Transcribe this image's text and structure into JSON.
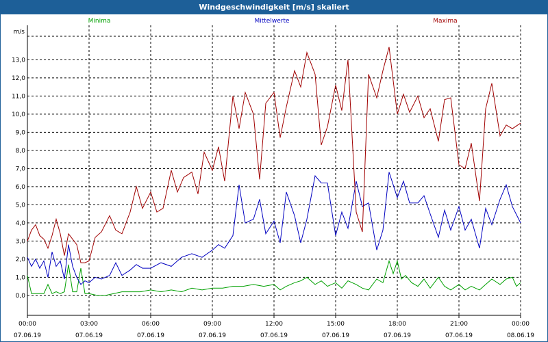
{
  "window": {
    "title": "Windgeschwindigkeit [m/s] skaliert"
  },
  "colors": {
    "titlebar": "#1d5f98",
    "minima": "#00a000",
    "mittelwerte": "#0000c0",
    "maxima": "#a00000",
    "grid": "#000000"
  },
  "chart_data": {
    "type": "line",
    "title": "Windgeschwindigkeit [m/s] skaliert",
    "ylabel": "m/s",
    "ylim": [
      -1.1,
      14.9
    ],
    "yticks": [
      "0,0",
      "1,0",
      "2,0",
      "3,0",
      "4,0",
      "5,0",
      "6,0",
      "7,0",
      "8,0",
      "9,0",
      "10,0",
      "11,0",
      "12,0",
      "13,0"
    ],
    "xlim_hours": [
      0,
      24
    ],
    "xticks": [
      {
        "time": "00:00",
        "date": "07.06.19"
      },
      {
        "time": "03:00",
        "date": "07.06.19"
      },
      {
        "time": "06:00",
        "date": "07.06.19"
      },
      {
        "time": "09:00",
        "date": "07.06.19"
      },
      {
        "time": "12:00",
        "date": "07.06.19"
      },
      {
        "time": "15:00",
        "date": "07.06.19"
      },
      {
        "time": "18:00",
        "date": "07.06.19"
      },
      {
        "time": "21:00",
        "date": "07.06.19"
      },
      {
        "time": "00:00",
        "date": "08.06.19"
      }
    ],
    "grid": true,
    "legend_position": "top",
    "series": [
      {
        "name": "Minima",
        "color": "#00a000",
        "x": [
          0,
          0.2,
          0.4,
          0.8,
          1.0,
          1.2,
          1.4,
          1.6,
          1.8,
          2.0,
          2.2,
          2.4,
          2.6,
          2.8,
          3.0,
          3.4,
          3.8,
          4.2,
          4.6,
          5.0,
          5.5,
          6.0,
          6.5,
          7.0,
          7.5,
          8.0,
          8.5,
          9.0,
          9.5,
          10.0,
          10.5,
          11.0,
          11.5,
          12.0,
          12.3,
          12.6,
          13.0,
          13.3,
          13.6,
          14.0,
          14.3,
          14.6,
          15.0,
          15.3,
          15.6,
          16.0,
          16.3,
          16.6,
          17.0,
          17.3,
          17.6,
          17.8,
          18.0,
          18.2,
          18.4,
          18.7,
          19.0,
          19.3,
          19.6,
          20.0,
          20.3,
          20.6,
          21.0,
          21.3,
          21.6,
          22.0,
          22.3,
          22.6,
          23.0,
          23.3,
          23.6,
          23.8,
          24.0
        ],
        "y": [
          1.1,
          0.1,
          0.1,
          0.1,
          0.6,
          0.1,
          0.2,
          0.1,
          0.2,
          1.7,
          0.2,
          0.2,
          1.5,
          0.1,
          0.1,
          0.0,
          0.0,
          0.1,
          0.2,
          0.2,
          0.2,
          0.3,
          0.2,
          0.3,
          0.2,
          0.4,
          0.3,
          0.4,
          0.4,
          0.5,
          0.5,
          0.6,
          0.5,
          0.6,
          0.3,
          0.5,
          0.7,
          0.8,
          1.0,
          0.6,
          0.8,
          0.5,
          0.7,
          0.4,
          0.8,
          0.6,
          0.4,
          0.3,
          0.9,
          0.7,
          1.9,
          1.2,
          1.9,
          0.9,
          1.1,
          0.7,
          0.5,
          0.9,
          0.4,
          1.0,
          0.5,
          0.3,
          0.6,
          0.3,
          0.5,
          0.3,
          0.6,
          0.9,
          0.6,
          0.9,
          1.0,
          0.5,
          0.7
        ]
      },
      {
        "name": "Mittelwerte",
        "color": "#0000c0",
        "x": [
          0,
          0.2,
          0.4,
          0.6,
          0.8,
          1.0,
          1.2,
          1.4,
          1.6,
          1.8,
          2.0,
          2.2,
          2.4,
          2.6,
          2.8,
          3.0,
          3.3,
          3.6,
          4.0,
          4.3,
          4.6,
          5.0,
          5.3,
          5.6,
          6.0,
          6.5,
          7.0,
          7.5,
          8.0,
          8.5,
          9.0,
          9.3,
          9.6,
          10.0,
          10.3,
          10.6,
          11.0,
          11.3,
          11.6,
          12.0,
          12.3,
          12.6,
          13.0,
          13.3,
          13.6,
          14.0,
          14.3,
          14.6,
          15.0,
          15.3,
          15.6,
          16.0,
          16.3,
          16.6,
          17.0,
          17.3,
          17.6,
          18.0,
          18.3,
          18.6,
          19.0,
          19.3,
          19.6,
          20.0,
          20.3,
          20.6,
          21.0,
          21.3,
          21.6,
          22.0,
          22.3,
          22.6,
          23.0,
          23.3,
          23.6,
          24.0
        ],
        "y": [
          2.1,
          1.6,
          2.0,
          1.5,
          1.9,
          1.0,
          2.4,
          1.6,
          1.9,
          0.9,
          2.8,
          1.6,
          1.0,
          0.6,
          0.8,
          0.7,
          1.0,
          0.9,
          1.1,
          1.8,
          1.1,
          1.4,
          1.7,
          1.5,
          1.5,
          1.8,
          1.6,
          2.1,
          2.3,
          2.1,
          2.5,
          2.8,
          2.6,
          3.3,
          6.1,
          4.0,
          4.2,
          5.3,
          3.4,
          4.1,
          2.9,
          5.7,
          4.4,
          2.9,
          4.2,
          6.6,
          6.2,
          6.2,
          3.3,
          4.6,
          3.7,
          6.3,
          4.9,
          5.1,
          2.5,
          3.6,
          6.8,
          5.4,
          6.3,
          5.1,
          5.1,
          5.5,
          4.5,
          3.2,
          4.7,
          3.6,
          4.9,
          3.6,
          4.2,
          2.6,
          4.8,
          3.9,
          5.3,
          6.1,
          4.9,
          4.0
        ]
      },
      {
        "name": "Maxima",
        "color": "#a00000",
        "x": [
          0,
          0.2,
          0.4,
          0.6,
          0.8,
          1.0,
          1.2,
          1.4,
          1.6,
          1.8,
          2.0,
          2.2,
          2.4,
          2.6,
          2.8,
          3.0,
          3.3,
          3.6,
          4.0,
          4.3,
          4.6,
          5.0,
          5.3,
          5.6,
          6.0,
          6.3,
          6.6,
          7.0,
          7.3,
          7.6,
          8.0,
          8.3,
          8.6,
          9.0,
          9.3,
          9.6,
          10.0,
          10.3,
          10.6,
          11.0,
          11.3,
          11.6,
          12.0,
          12.3,
          12.6,
          13.0,
          13.3,
          13.6,
          14.0,
          14.3,
          14.6,
          15.0,
          15.3,
          15.6,
          16.0,
          16.3,
          16.6,
          17.0,
          17.3,
          17.6,
          18.0,
          18.3,
          18.6,
          19.0,
          19.3,
          19.6,
          20.0,
          20.3,
          20.6,
          21.0,
          21.3,
          21.6,
          22.0,
          22.3,
          22.6,
          23.0,
          23.3,
          23.6,
          24.0
        ],
        "y": [
          3.0,
          3.6,
          3.9,
          3.3,
          3.1,
          2.6,
          3.3,
          4.2,
          3.4,
          2.2,
          3.4,
          3.1,
          2.8,
          1.8,
          1.8,
          1.9,
          3.2,
          3.5,
          4.4,
          3.6,
          3.4,
          4.6,
          6.0,
          4.8,
          5.7,
          4.6,
          4.8,
          6.9,
          5.7,
          6.5,
          6.8,
          5.6,
          7.9,
          6.9,
          8.2,
          6.3,
          11.0,
          9.2,
          11.2,
          10.0,
          6.4,
          10.6,
          11.2,
          8.7,
          10.4,
          12.4,
          11.5,
          13.4,
          12.2,
          8.3,
          9.3,
          11.6,
          10.2,
          13.0,
          4.6,
          3.5,
          12.2,
          10.9,
          12.4,
          13.7,
          10.0,
          11.1,
          10.1,
          11.0,
          9.8,
          10.3,
          8.5,
          10.8,
          10.9,
          7.2,
          7.0,
          8.4,
          5.2,
          10.3,
          11.7,
          8.8,
          9.4,
          9.2,
          9.5
        ]
      }
    ]
  }
}
